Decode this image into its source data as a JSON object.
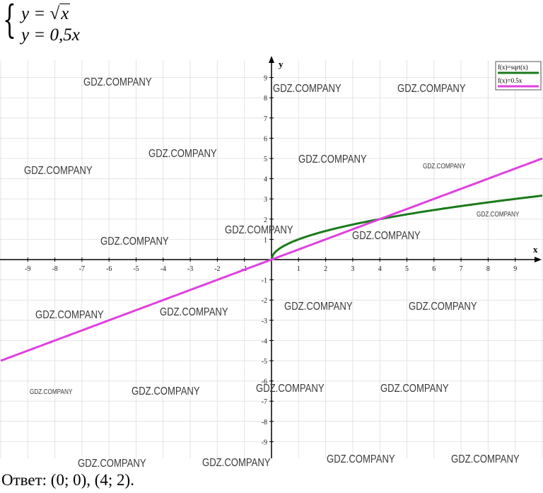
{
  "system": {
    "brace": "{",
    "eq1_lhs": "y = ",
    "eq1_sqrt": "√",
    "eq1_rad": "x",
    "eq2": "y = 0,5x"
  },
  "answer": "Ответ: (0; 0), (4; 2).",
  "watermark_text": "GDZ.COMPANY",
  "chart_data": {
    "type": "line",
    "xlabel": "x",
    "ylabel": "y",
    "xlim": [
      -10,
      10
    ],
    "ylim": [
      -10,
      10
    ],
    "x_ticks": [
      -9,
      -8,
      -7,
      -6,
      -5,
      -4,
      -3,
      -2,
      -1,
      1,
      2,
      3,
      4,
      5,
      6,
      7,
      8,
      9
    ],
    "y_ticks": [
      -9,
      -8,
      -7,
      -6,
      -5,
      -4,
      -3,
      -2,
      -1,
      1,
      2,
      3,
      4,
      5,
      6,
      7,
      8,
      9
    ],
    "grid": true,
    "legend_position": "top-right",
    "series": [
      {
        "name": "f(x)=sqrt(x)",
        "color": "#1a7a1a",
        "function": "sqrt",
        "domain": [
          0,
          10
        ]
      },
      {
        "name": "f(x)=0.5x",
        "color": "#e040e0",
        "function": "linear",
        "slope": 0.5,
        "domain": [
          -10,
          10
        ]
      }
    ],
    "intersections": [
      {
        "x": 0,
        "y": 0
      },
      {
        "x": 4,
        "y": 2
      }
    ]
  }
}
